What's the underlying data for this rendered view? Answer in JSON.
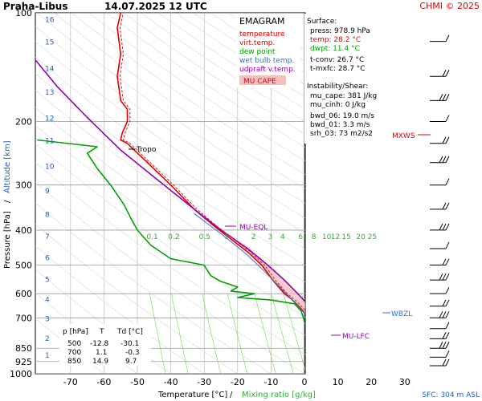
{
  "header": {
    "station": "Praha-Libus",
    "datetime": "14.07.2025 12 UTC",
    "copyright": "CHMI © 2025"
  },
  "legend": {
    "title": "EMAGRAM",
    "items": [
      {
        "label": "temperature",
        "color": "#e00000"
      },
      {
        "label": "virt.temp.",
        "color": "#e00000"
      },
      {
        "label": "dew point",
        "color": "#00a000"
      },
      {
        "label": "wet bulb temp.",
        "color": "#3070d0"
      },
      {
        "label": "udpraft v.temp.",
        "color": "#9000b0"
      }
    ],
    "cape_label": "MU CAPE"
  },
  "surface": {
    "heading": "Surface:",
    "press": "press: 978.9 hPa",
    "temp": "temp: 28.2 °C",
    "dwpt": "dwpt: 11.4 °C",
    "tconv": "t-conv: 26.7 °C",
    "tmxfc": "t-mxfc: 28.7 °C"
  },
  "instability": {
    "heading": "Instability/Shear:",
    "mu_cape": "mu_cape: 381 J/kg",
    "mu_cinh": "mu_cinh: 0 J/kg",
    "bwd_06": "bwd_06: 19.0 m/s",
    "bwd_01": "bwd_01: 3.3 m/s",
    "srh_03": "srh_03: 73 m2/s2"
  },
  "levels_table": {
    "headers": [
      "p [hPa]",
      "T",
      "Td [°C]"
    ],
    "rows": [
      [
        "500",
        "-12.8",
        "-30.1"
      ],
      [
        "700",
        "1.1",
        "-0.3"
      ],
      [
        "850",
        "14.9",
        "9.7"
      ]
    ]
  },
  "axes": {
    "xlabel_temp": "Temperature [°C]",
    "xlabel_sep": "/",
    "xlabel_mix": "Mixing ratio [g/kg]",
    "ylabel_pressure": "Pressure [hPa]",
    "ylabel_sep": "/",
    "ylabel_alt": "Altitude [km]",
    "sfc": "SFC: 304 m ASL"
  },
  "annotations": {
    "tropo": "Tropo",
    "mu_eql": "MU-EQL",
    "mu_lfc": "MU-LFC",
    "wbzl": "WBZL",
    "mxws": "MXWS"
  },
  "colors": {
    "temperature": "#e00000",
    "dewpoint": "#00a000",
    "wetbulb": "#3070d0",
    "parcel": "#9000b0",
    "mixing": "#7fdf5f",
    "altitude": "#2060c0",
    "grid": "#b0b0b0",
    "cape_fill": "#f4c0c0"
  },
  "chart_data": {
    "type": "line",
    "title": "Praha-Libus 14.07.2025 12 UTC",
    "xlabel": "Temperature [°C] / Mixing ratio [g/kg]",
    "ylabel": "Pressure [hPa] / Altitude [km]",
    "xlim": [
      -80,
      30
    ],
    "ylim": [
      1000,
      100
    ],
    "y_scale": "log",
    "x_ticks": [
      -70,
      -60,
      -50,
      -40,
      -30,
      -20,
      -10,
      0,
      10,
      20,
      30
    ],
    "p_ticks": [
      100,
      200,
      300,
      400,
      500,
      600,
      700,
      850,
      925,
      1000
    ],
    "mixing_ratio_ticks": [
      "0.1",
      "0.2",
      "0.5",
      "1",
      "2",
      "3",
      "4",
      "6",
      "8",
      "10",
      "12",
      "15",
      "20",
      "25"
    ],
    "mixing_ratio_values": [
      0.1,
      0.2,
      0.5,
      1,
      2,
      3,
      4,
      6,
      8,
      10,
      12,
      15,
      20,
      25
    ],
    "altitude_km": [
      {
        "label": "1",
        "p": 885
      },
      {
        "label": "2",
        "p": 795
      },
      {
        "label": "3",
        "p": 700
      },
      {
        "label": "4",
        "p": 620
      },
      {
        "label": "5",
        "p": 545
      },
      {
        "label": "6",
        "p": 475
      },
      {
        "label": "7",
        "p": 415
      },
      {
        "label": "8",
        "p": 360
      },
      {
        "label": "9",
        "p": 310
      },
      {
        "label": "10",
        "p": 265
      },
      {
        "label": "11",
        "p": 225
      },
      {
        "label": "12",
        "p": 195
      },
      {
        "label": "13",
        "p": 165
      },
      {
        "label": "14",
        "p": 142
      },
      {
        "label": "15",
        "p": 120
      },
      {
        "label": "16",
        "p": 104
      }
    ],
    "series": [
      {
        "name": "temperature",
        "points": [
          [
            28.2,
            978.9
          ],
          [
            22,
            940
          ],
          [
            17,
            900
          ],
          [
            14.9,
            850
          ],
          [
            12,
            820
          ],
          [
            8,
            790
          ],
          [
            4,
            745
          ],
          [
            1.1,
            700
          ],
          [
            -1,
            660
          ],
          [
            -4,
            620
          ],
          [
            -6,
            600
          ],
          [
            -9.5,
            550
          ],
          [
            -12.8,
            500
          ],
          [
            -17,
            460
          ],
          [
            -22.5,
            420
          ],
          [
            -27,
            390
          ],
          [
            -33,
            350
          ],
          [
            -40,
            300
          ],
          [
            -47,
            260
          ],
          [
            -53,
            230
          ],
          [
            -55,
            225
          ],
          [
            -54.5,
            215
          ],
          [
            -53,
            200
          ],
          [
            -53,
            185
          ],
          [
            -55,
            175
          ],
          [
            -56,
            150
          ],
          [
            -55,
            130
          ],
          [
            -56,
            110
          ],
          [
            -55,
            100
          ]
        ]
      },
      {
        "name": "dew point",
        "points": [
          [
            11.4,
            978.9
          ],
          [
            11,
            940
          ],
          [
            10.5,
            900
          ],
          [
            9.7,
            850
          ],
          [
            6,
            800
          ],
          [
            2,
            760
          ],
          [
            0,
            720
          ],
          [
            -0.3,
            700
          ],
          [
            -1,
            670
          ],
          [
            -3,
            640
          ],
          [
            -10,
            625
          ],
          [
            -20,
            615
          ],
          [
            -15,
            600
          ],
          [
            -22,
            590
          ],
          [
            -20,
            575
          ],
          [
            -25,
            555
          ],
          [
            -28,
            535
          ],
          [
            -30.1,
            500
          ],
          [
            -40,
            480
          ],
          [
            -46,
            440
          ],
          [
            -50,
            400
          ],
          [
            -52,
            370
          ],
          [
            -54,
            340
          ],
          [
            -58,
            300
          ],
          [
            -62,
            270
          ],
          [
            -65,
            245
          ],
          [
            -62,
            235
          ],
          [
            -80,
            225
          ]
        ]
      },
      {
        "name": "wet bulb temp.",
        "points": [
          [
            17.5,
            978.9
          ],
          [
            15,
            930
          ],
          [
            12,
            850
          ],
          [
            7,
            780
          ],
          [
            3,
            720
          ],
          [
            0,
            680
          ],
          [
            -4,
            620
          ],
          [
            -7,
            580
          ],
          [
            -12,
            520
          ],
          [
            -17,
            470
          ],
          [
            -22,
            430
          ],
          [
            -28,
            390
          ],
          [
            -33,
            360
          ]
        ]
      },
      {
        "name": "udpraft v.temp.",
        "points": [
          [
            29.5,
            978.9
          ],
          [
            23,
            940
          ],
          [
            16,
            880
          ],
          [
            12,
            830
          ],
          [
            8,
            770
          ],
          [
            4,
            700
          ],
          [
            1.5,
            650
          ],
          [
            -2,
            600
          ],
          [
            -6,
            550
          ],
          [
            -11,
            500
          ],
          [
            -17,
            450
          ],
          [
            -25,
            400
          ],
          [
            -33,
            350
          ],
          [
            -44,
            290
          ],
          [
            -55,
            240
          ],
          [
            -65,
            195
          ],
          [
            -74,
            160
          ],
          [
            -82,
            130
          ]
        ]
      }
    ]
  }
}
